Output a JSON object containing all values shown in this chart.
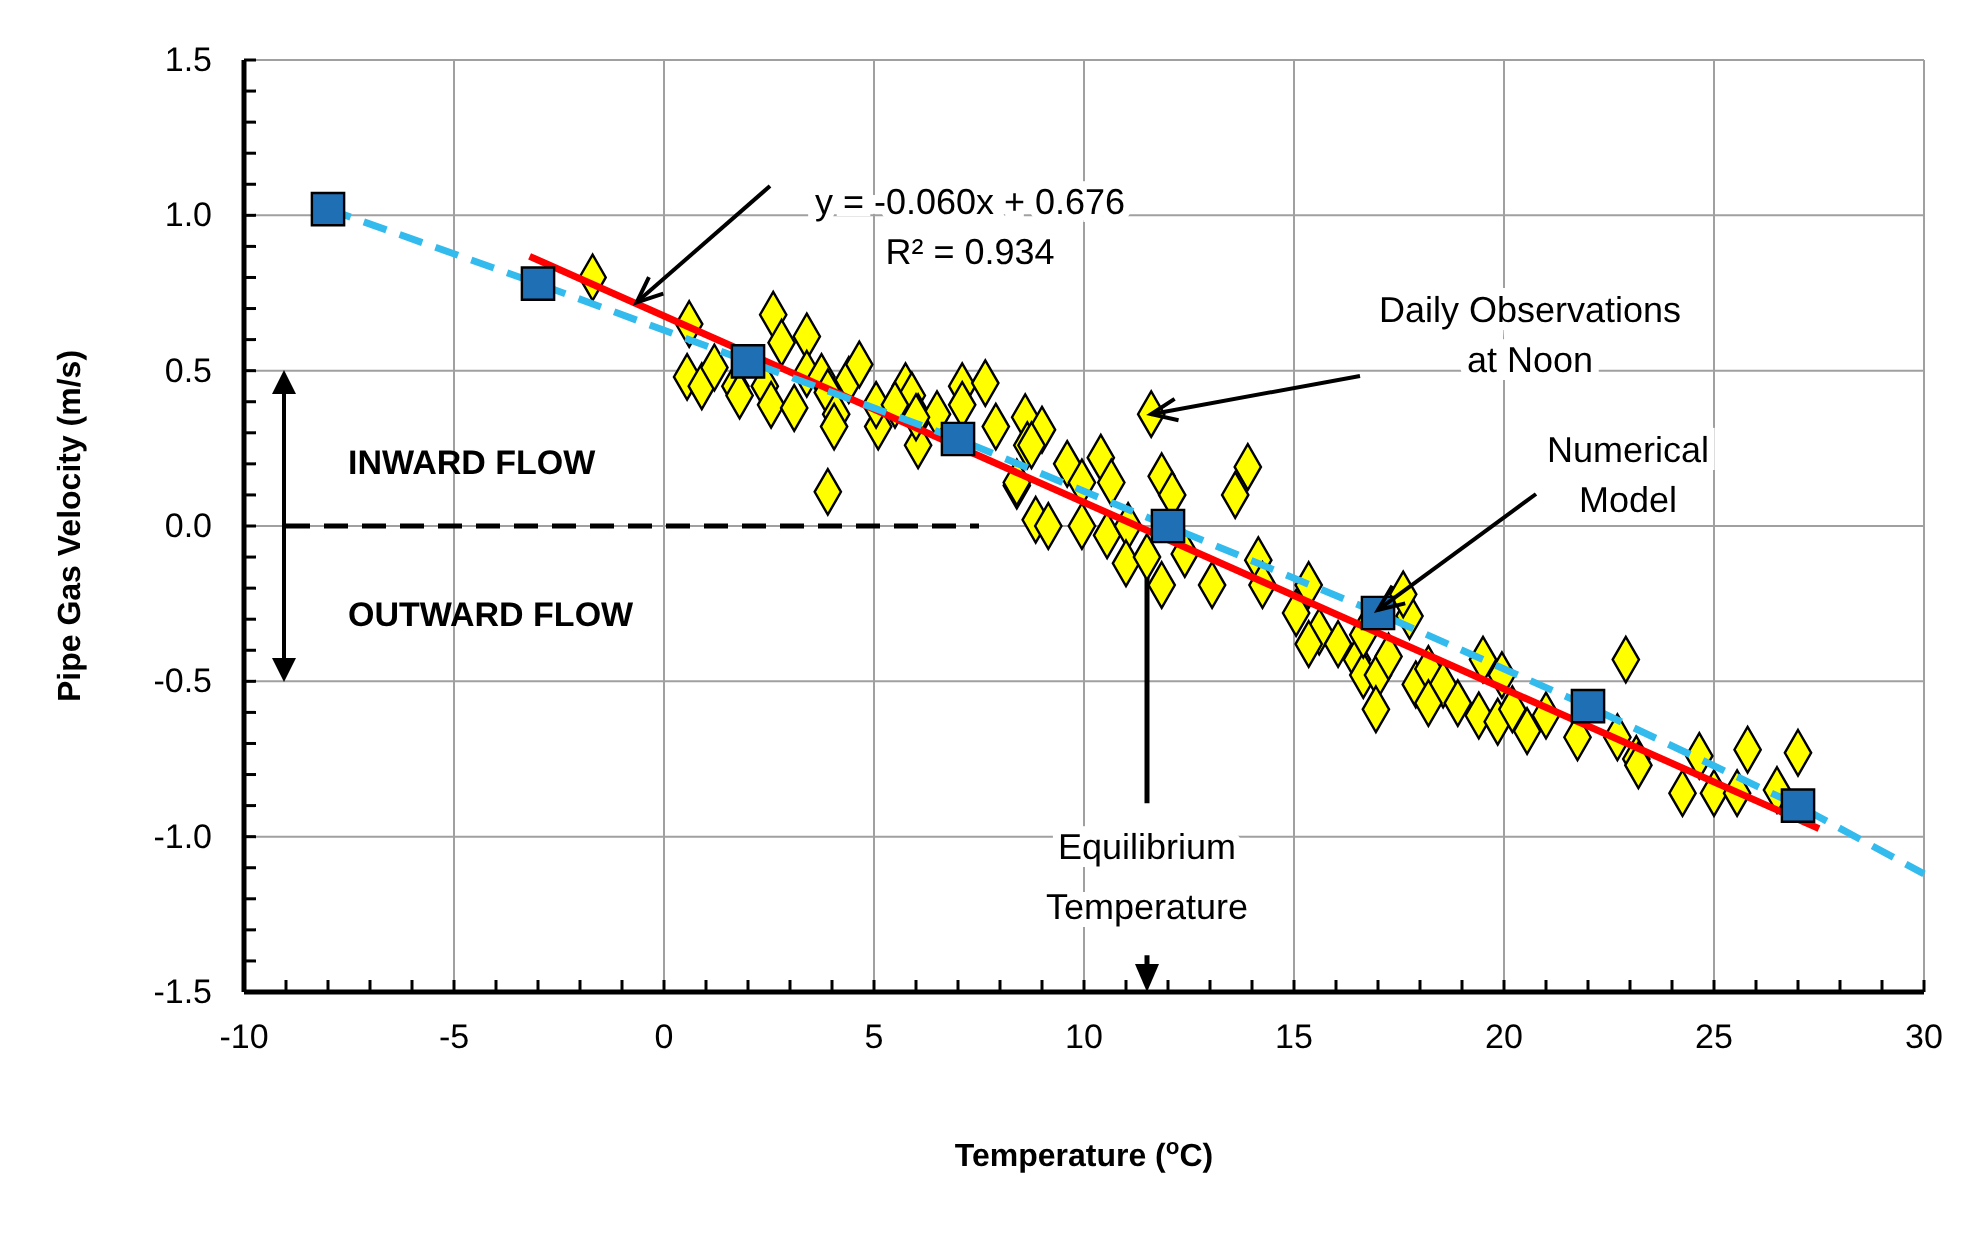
{
  "chart_data": {
    "type": "scatter",
    "xlabel": "Temperature ($^{o}$C)",
    "ylabel": "Pipe Gas Velocity (m/s)",
    "xlim": [
      -10,
      30
    ],
    "ylim": [
      -1.5,
      1.5
    ],
    "xticks": [
      -10,
      {
        "value": -9,
        "label": null
      },
      {
        "value": -8,
        "label": null
      },
      {
        "value": -7,
        "label": null
      },
      {
        "value": -6,
        "label": null
      },
      -5,
      {
        "value": -4,
        "label": null
      },
      {
        "value": -3,
        "label": null
      },
      {
        "value": -2,
        "label": null
      },
      {
        "value": -1,
        "label": null
      },
      0,
      {
        "value": 1,
        "label": null
      },
      {
        "value": 2,
        "label": null
      },
      {
        "value": 3,
        "label": null
      },
      {
        "value": 4,
        "label": null
      },
      5,
      {
        "value": 6,
        "label": null
      },
      {
        "value": 7,
        "label": null
      },
      {
        "value": 8,
        "label": null
      },
      {
        "value": 9,
        "label": null
      },
      10,
      {
        "value": 11,
        "label": null
      },
      {
        "value": 12,
        "label": null
      },
      {
        "value": 13,
        "label": null
      },
      {
        "value": 14,
        "label": null
      },
      15,
      {
        "value": 16,
        "label": null
      },
      {
        "value": 17,
        "label": null
      },
      {
        "value": 18,
        "label": null
      },
      {
        "value": 19,
        "label": null
      },
      20,
      {
        "value": 21,
        "label": null
      },
      {
        "value": 22,
        "label": null
      },
      {
        "value": 23,
        "label": null
      },
      {
        "value": 24,
        "label": null
      },
      25,
      {
        "value": 26,
        "label": null
      },
      {
        "value": 27,
        "label": null
      },
      {
        "value": 28,
        "label": null
      },
      {
        "value": 29,
        "label": null
      },
      30
    ],
    "yticks": [
      {
        "value": -1.5,
        "label": "-1.5"
      },
      {
        "value": -1.4,
        "label": null
      },
      {
        "value": -1.3,
        "label": null
      },
      {
        "value": -1.2,
        "label": null
      },
      {
        "value": -1.1,
        "label": null
      },
      {
        "value": -1.0,
        "label": "-1.0"
      },
      {
        "value": -0.9,
        "label": null
      },
      {
        "value": -0.8,
        "label": null
      },
      {
        "value": -0.7,
        "label": null
      },
      {
        "value": -0.6,
        "label": null
      },
      {
        "value": -0.5,
        "label": "-0.5"
      },
      {
        "value": -0.4,
        "label": null
      },
      {
        "value": -0.3,
        "label": null
      },
      {
        "value": -0.2,
        "label": null
      },
      {
        "value": -0.1,
        "label": null
      },
      {
        "value": 0,
        "label": "0.0"
      },
      {
        "value": 0.1,
        "label": null
      },
      {
        "value": 0.2,
        "label": null
      },
      {
        "value": 0.3,
        "label": null
      },
      {
        "value": 0.4,
        "label": null
      },
      {
        "value": 0.5,
        "label": "0.5"
      },
      {
        "value": 0.6,
        "label": null
      },
      {
        "value": 0.7,
        "label": null
      },
      {
        "value": 0.8,
        "label": null
      },
      {
        "value": 0.9,
        "label": null
      },
      {
        "value": 1.0,
        "label": "1.0"
      },
      {
        "value": 1.1,
        "label": null
      },
      {
        "value": 1.2,
        "label": null
      },
      {
        "value": 1.3,
        "label": null
      },
      {
        "value": 1.4,
        "label": null
      },
      {
        "value": 1.5,
        "label": "1.5"
      }
    ],
    "grid": true,
    "series": [
      {
        "type": "scatter",
        "color": "#ffff00",
        "marker": "diamond",
        "x": [
          -1.7,
          0.6,
          0.55,
          0.9,
          1.2,
          2.6,
          2.8,
          3.4,
          1.7,
          1.8,
          2.4,
          2.55,
          3.1,
          3.4,
          3.75,
          3.9,
          4.1,
          4.05,
          4.4,
          4.65,
          3.9,
          5.1,
          5.05,
          5.75,
          5.9,
          6.05,
          6.05,
          6.5,
          7.1,
          7.65,
          7.1,
          7.9,
          8.6,
          8.65,
          8.4,
          8.85,
          5.5,
          6.0,
          9.0,
          8.75,
          9.6,
          10.4,
          8.4,
          9.95,
          10.65,
          11.6,
          11.85,
          12.1,
          13.9,
          13.6,
          9.15,
          9.95,
          10.55,
          11.05,
          11.0,
          11.5,
          11.85,
          12.4,
          13.05,
          14.15,
          14.25,
          15.35,
          15.05,
          15.6,
          15.35,
          16.05,
          16.5,
          16.65,
          17.0,
          16.95,
          17.25,
          17.75,
          17.6,
          16.65,
          17.9,
          18.2,
          18.55,
          18.2,
          18.9,
          19.5,
          19.95,
          19.4,
          19.85,
          20.2,
          20.55,
          21.0,
          21.75,
          22.9,
          22.7,
          23.15,
          23.2,
          24.25,
          24.65,
          25.0,
          25.55,
          25.8,
          26.5,
          27.0
        ],
        "values": [
          0.8,
          0.65,
          0.48,
          0.45,
          0.51,
          0.68,
          0.59,
          0.61,
          0.45,
          0.42,
          0.45,
          0.39,
          0.38,
          0.49,
          0.48,
          0.43,
          0.36,
          0.32,
          0.47,
          0.52,
          0.11,
          0.32,
          0.39,
          0.45,
          0.42,
          0.35,
          0.26,
          0.36,
          0.45,
          0.46,
          0.39,
          0.32,
          0.35,
          0.26,
          0.13,
          0.02,
          0.39,
          0.35,
          0.31,
          0.26,
          0.2,
          0.22,
          0.14,
          0.14,
          0.14,
          0.36,
          0.16,
          0.1,
          0.19,
          0.1,
          0.0,
          0.0,
          -0.03,
          0.0,
          -0.12,
          -0.1,
          -0.19,
          -0.09,
          -0.19,
          -0.11,
          -0.19,
          -0.19,
          -0.28,
          -0.34,
          -0.38,
          -0.38,
          -0.43,
          -0.48,
          -0.48,
          -0.59,
          -0.42,
          -0.29,
          -0.22,
          -0.35,
          -0.51,
          -0.46,
          -0.51,
          -0.57,
          -0.57,
          -0.43,
          -0.48,
          -0.61,
          -0.63,
          -0.59,
          -0.66,
          -0.61,
          -0.68,
          -0.43,
          -0.68,
          -0.75,
          -0.77,
          -0.86,
          -0.74,
          -0.86,
          -0.86,
          -0.72,
          -0.85,
          -0.73
        ]
      },
      {
        "type": "line",
        "color": "#ff0000",
        "marker": "none",
        "line_style": "solid",
        "x": [
          -3.2,
          27.5
        ],
        "values": [
          0.868,
          -0.974
        ]
      },
      {
        "type": "line",
        "color": "#33bbee",
        "marker": "none",
        "line_style": "dashed",
        "x": [
          -8,
          -3,
          2,
          7,
          12,
          17,
          22,
          27,
          30
        ],
        "values": [
          1.02,
          0.78,
          0.53,
          0.28,
          0.0,
          -0.28,
          -0.58,
          -0.9,
          -1.12
        ]
      },
      {
        "type": "scatter",
        "color": "#1f6fb5",
        "marker": "square",
        "x": [
          -8,
          -3,
          2,
          7,
          12,
          17,
          22,
          27
        ],
        "values": [
          1.02,
          0.78,
          0.53,
          0.28,
          0.0,
          -0.28,
          -0.58,
          -0.9
        ]
      },
      {
        "type": "line",
        "color": "#000000",
        "marker": "none",
        "line_style": "dashed",
        "x": [
          -9,
          7.5
        ],
        "values": [
          0,
          0
        ]
      }
    ],
    "ref_lines": [
      {
        "axis": "x",
        "value": 11.5,
        "label": "Equilibrium\nTemperature",
        "color": "#000000"
      }
    ],
    "annotations": [
      {
        "text": "y = -0.060x + 0.676\nR² = 0.934",
        "x": -0.65,
        "y": 0.72
      },
      {
        "text": "Daily Observations\nat Noon",
        "x": 11.6,
        "y": 0.36
      },
      {
        "text": "Numerical\nModel",
        "x": 17,
        "y": -0.27
      },
      "INWARD FLOW",
      "OUTWARD FLOW"
    ]
  }
}
